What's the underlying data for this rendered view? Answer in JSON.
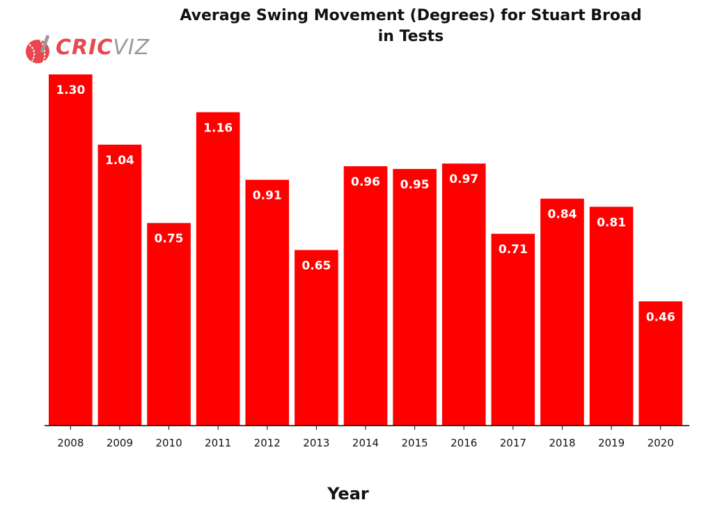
{
  "brand": {
    "logo_icon": "cricket-ball-bat-icon",
    "name_part1": "CRIC",
    "name_part2": "VIZ"
  },
  "chart_data": {
    "type": "bar",
    "title": "Average Swing Movement (Degrees) for Stuart Broad in Tests",
    "title_lines": [
      "Average Swing Movement (Degrees) for Stuart Broad",
      "in Tests"
    ],
    "xlabel": "Year",
    "ylabel": "",
    "categories": [
      "2008",
      "2009",
      "2010",
      "2011",
      "2012",
      "2013",
      "2014",
      "2015",
      "2016",
      "2017",
      "2018",
      "2019",
      "2020"
    ],
    "values": [
      1.3,
      1.04,
      0.75,
      1.16,
      0.91,
      0.65,
      0.96,
      0.95,
      0.97,
      0.71,
      0.84,
      0.81,
      0.46
    ],
    "value_labels": [
      "1.30",
      "1.04",
      "0.75",
      "1.16",
      "0.91",
      "0.65",
      "0.96",
      "0.95",
      "0.97",
      "0.71",
      "0.84",
      "0.81",
      "0.46"
    ],
    "ylim": [
      0,
      1.3
    ],
    "grid": false,
    "bar_color": "#ff0000",
    "label_color": "#ffffff"
  }
}
